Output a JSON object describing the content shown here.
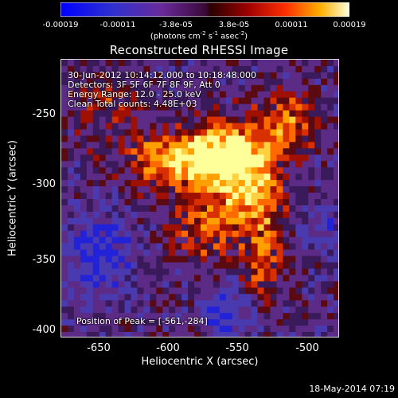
{
  "colorbar": {
    "ticks": [
      "-0.00019",
      "-0.00011",
      "-3.8e-05",
      "3.8e-05",
      "0.00011",
      "0.00019"
    ],
    "units_main": "(photons cm",
    "units_sup1": "-2",
    "units_mid1": " s",
    "units_sup2": "-1",
    "units_mid2": " asec",
    "units_sup3": "-2",
    "units_end": ")"
  },
  "title": "Reconstructed RHESSI Image",
  "annotations": {
    "time": "30-Jun-2012 10:14:12.000 to 10:18:48.000",
    "detectors": "Detectors: 3F 5F 6F 7F 8F 9F, Att 0",
    "energy": "Energy Range: 12.0 - 25.0 keV",
    "clean": "Clean     Total counts: 4.48E+03",
    "peak": "Position of Peak = [-561,-284]"
  },
  "axes": {
    "xlabel": "Heliocentric X (arcsec)",
    "ylabel": "Heliocentric Y (arcsec)",
    "xticks": [
      "-650",
      "-600",
      "-550",
      "-500"
    ],
    "yticks": [
      "-250",
      "-300",
      "-350",
      "-400"
    ]
  },
  "timestamp": "18-May-2014 07:19",
  "colors": {
    "background": "#000000",
    "low": "#1010ff",
    "mid": "#5a1f6e",
    "hot": "#ff5a00",
    "peak": "#ffff80"
  }
}
